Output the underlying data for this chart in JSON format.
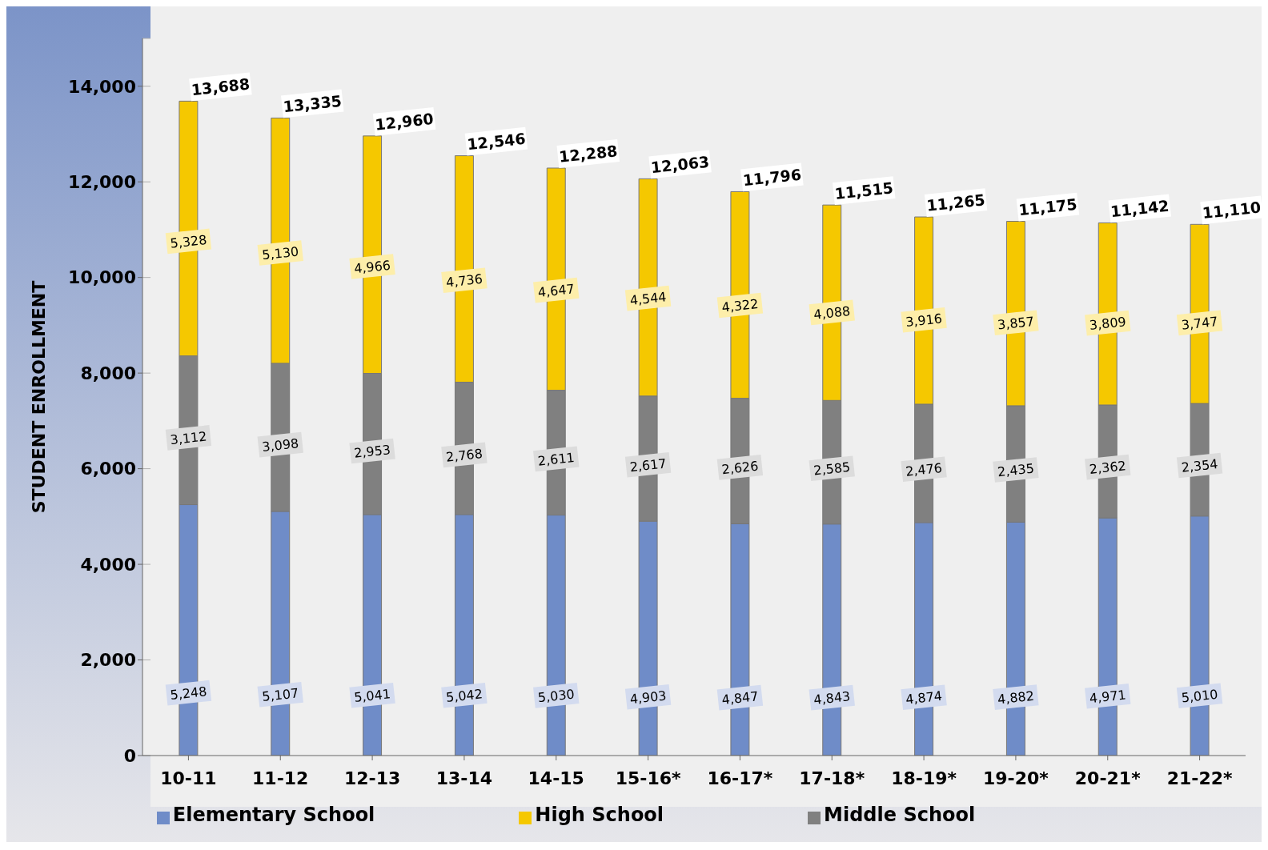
{
  "chart_data": {
    "type": "bar",
    "stacked": true,
    "ylabel": "STUDENT ENROLLMENT",
    "categories": [
      "10-11",
      "11-12",
      "12-13",
      "13-14",
      "14-15",
      "15-16*",
      "16-17*",
      "17-18*",
      "18-19*",
      "19-20*",
      "20-21*",
      "21-22*"
    ],
    "series": [
      {
        "name": "Elementary School",
        "color": "#6f8cc8",
        "values": [
          5248,
          5107,
          5041,
          5042,
          5030,
          4903,
          4847,
          4843,
          4874,
          4882,
          4971,
          5010
        ],
        "value_labels": [
          "5,248",
          "5,107",
          "5,041",
          "5,042",
          "5,030",
          "4,903",
          "4,847",
          "4,843",
          "4,874",
          "4,882",
          "4,971",
          "5,010"
        ]
      },
      {
        "name": "Middle School",
        "color": "#808080",
        "values": [
          3112,
          3098,
          2953,
          2768,
          2611,
          2617,
          2626,
          2585,
          2476,
          2435,
          2362,
          2354
        ],
        "value_labels": [
          "3,112",
          "3,098",
          "2,953",
          "2,768",
          "2,611",
          "2,617",
          "2,626",
          "2,585",
          "2,476",
          "2,435",
          "2,362",
          "2,354"
        ]
      },
      {
        "name": "High School",
        "color": "#f5c800",
        "values": [
          5328,
          5130,
          4966,
          4736,
          4647,
          4544,
          4322,
          4088,
          3916,
          3857,
          3809,
          3747
        ],
        "value_labels": [
          "5,328",
          "5,130",
          "4,966",
          "4,736",
          "4,647",
          "4,544",
          "4,322",
          "4,088",
          "3,916",
          "3,857",
          "3,809",
          "3,747"
        ]
      }
    ],
    "totals": [
      "13,688",
      "13,335",
      "12,960",
      "12,546",
      "12,288",
      "12,063",
      "11,796",
      "11,515",
      "11,265",
      "11,175",
      "11,142",
      "11,110"
    ],
    "ylim": [
      0,
      15000
    ],
    "yticks": [
      0,
      {
        "value": 2000,
        "label": "2,000"
      },
      {
        "value": 4000,
        "label": "4,000"
      },
      {
        "value": 6000,
        "label": "6,000"
      },
      {
        "value": 8000,
        "label": "8,000"
      },
      {
        "value": 10000,
        "label": "10,000"
      },
      {
        "value": 12000,
        "label": "12,000"
      },
      {
        "value": 14000,
        "label": "14,000"
      }
    ],
    "grid": "y",
    "legend": "bottom"
  }
}
